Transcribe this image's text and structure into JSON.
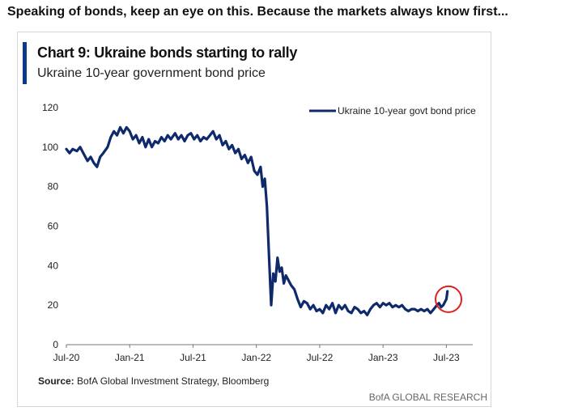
{
  "headline": "Speaking of bonds, keep an eye on this. Because the markets always know first...",
  "chart_data": {
    "type": "line",
    "title": "Chart 9: Ukraine bonds starting to rally",
    "subtitle": "Ukraine 10-year government bond price",
    "xlabel": "",
    "ylabel": "",
    "ylim": [
      0,
      120
    ],
    "yticks": [
      0,
      20,
      40,
      60,
      80,
      100,
      120
    ],
    "xticks": [
      "Jul-20",
      "Jan-21",
      "Jul-21",
      "Jan-22",
      "Jul-22",
      "Jan-23",
      "Jul-23"
    ],
    "xtick_positions": [
      0,
      6,
      12,
      18,
      24,
      30,
      36
    ],
    "xlim": [
      0,
      38.5
    ],
    "legend_position": "top-right",
    "grid": false,
    "series": [
      {
        "name": "Ukraine 10-year govt bond price",
        "color": "#0f2a6b",
        "x": [
          0,
          0.3,
          0.6,
          1.0,
          1.3,
          1.6,
          2.0,
          2.3,
          2.6,
          2.9,
          3.2,
          3.5,
          3.9,
          4.2,
          4.5,
          4.8,
          5.1,
          5.4,
          5.7,
          6.0,
          6.3,
          6.6,
          6.9,
          7.2,
          7.5,
          7.8,
          8.1,
          8.4,
          8.7,
          9.0,
          9.3,
          9.6,
          9.9,
          10.3,
          10.6,
          10.9,
          11.2,
          11.5,
          11.8,
          12.1,
          12.4,
          12.7,
          13.0,
          13.3,
          13.6,
          13.9,
          14.2,
          14.5,
          14.8,
          15.1,
          15.4,
          15.7,
          16.0,
          16.3,
          16.6,
          16.9,
          17.2,
          17.5,
          17.8,
          18.1,
          18.4,
          18.6,
          18.8,
          19.0,
          19.2,
          19.4,
          19.6,
          19.8,
          20.0,
          20.2,
          20.4,
          20.6,
          20.8,
          21.0,
          21.3,
          21.6,
          21.9,
          22.2,
          22.5,
          22.8,
          23.1,
          23.4,
          23.7,
          24.0,
          24.3,
          24.6,
          24.9,
          25.2,
          25.5,
          25.8,
          26.1,
          26.4,
          26.7,
          27.0,
          27.3,
          27.6,
          27.9,
          28.2,
          28.5,
          28.8,
          29.1,
          29.4,
          29.7,
          30.0,
          30.3,
          30.6,
          30.9,
          31.2,
          31.5,
          31.8,
          32.1,
          32.4,
          32.7,
          33.0,
          33.3,
          33.6,
          33.9,
          34.2,
          34.5,
          34.8,
          35.1,
          35.3,
          35.5,
          35.7,
          35.9,
          36.0,
          36.1
        ],
        "values": [
          99,
          97,
          99,
          98,
          100,
          97,
          93,
          95,
          92,
          90,
          95,
          97,
          100,
          105,
          108,
          106,
          110,
          107,
          110,
          108,
          104,
          106,
          102,
          105,
          100,
          104,
          100,
          103,
          102,
          105,
          103,
          106,
          104,
          107,
          104,
          106,
          103,
          106,
          107,
          104,
          106,
          103,
          105,
          104,
          106,
          108,
          104,
          106,
          101,
          103,
          99,
          101,
          97,
          99,
          94,
          96,
          92,
          95,
          88,
          86,
          90,
          80,
          84,
          70,
          45,
          20,
          36,
          32,
          44,
          37,
          39,
          31,
          35,
          33,
          30,
          28,
          23,
          19,
          22,
          21,
          18,
          20,
          17,
          18,
          16,
          20,
          18,
          21,
          16,
          20,
          18,
          20,
          17,
          16,
          19,
          18,
          16,
          17,
          15,
          18,
          20,
          21,
          19,
          21,
          20,
          21,
          19,
          20,
          19,
          20,
          18,
          17,
          18,
          18,
          17,
          18,
          17,
          18,
          16,
          18,
          20,
          21,
          19,
          20,
          22,
          23,
          27
        ],
        "highlight_circle": {
          "x": 36.2,
          "y": 23
        }
      }
    ]
  },
  "source": {
    "label": "Source:",
    "text": "BofA Global Investment Strategy, Bloomberg"
  },
  "branding": "BofA GLOBAL RESEARCH"
}
